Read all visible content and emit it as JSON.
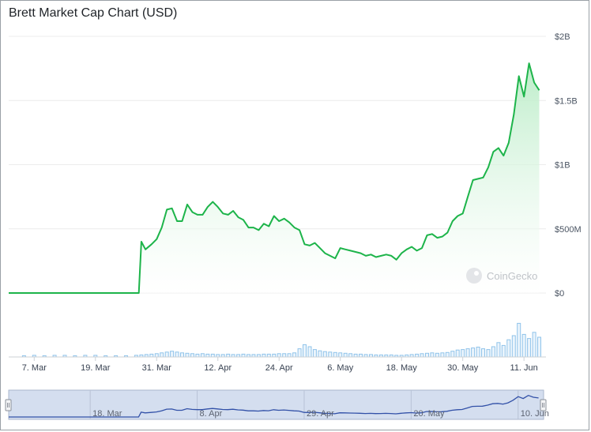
{
  "title": "Brett Market Cap Chart (USD)",
  "watermark": "CoinGecko",
  "colors": {
    "line": "#1db44a",
    "area_top": "#b9ecc6",
    "volume": "#8fc3ea",
    "navigator_fill": "#d4deef",
    "navigator_line": "#3251a8",
    "grid": "#ececec"
  },
  "chart_data": {
    "type": "area",
    "title": "Brett Market Cap Chart (USD)",
    "xlabel": "",
    "ylabel": "",
    "ylim": [
      0,
      2000000000
    ],
    "y_ticks": [
      "$0",
      "$500M",
      "$1B",
      "$1.5B",
      "$2B"
    ],
    "y_tick_values": [
      0,
      500000000,
      1000000000,
      1500000000,
      2000000000
    ],
    "x_ticks": [
      "7. Mar",
      "19. Mar",
      "31. Mar",
      "12. Apr",
      "24. Apr",
      "6. May",
      "18. May",
      "30. May",
      "11. Jun"
    ],
    "x_tick_days": [
      6,
      18,
      30,
      42,
      54,
      66,
      78,
      90,
      102
    ],
    "x_range_days": [
      1,
      106
    ],
    "x_note_days": "day 1 = 1 Mar",
    "grid": true,
    "legend": "none",
    "series": [
      {
        "type": "area",
        "values": [
          [
            1,
            0
          ],
          [
            16,
            0
          ],
          [
            26.5,
            0
          ],
          [
            27,
            400000000
          ],
          [
            27.8,
            340000000
          ],
          [
            29,
            380000000
          ],
          [
            30,
            420000000
          ],
          [
            31,
            510000000
          ],
          [
            32,
            650000000
          ],
          [
            33,
            660000000
          ],
          [
            34,
            560000000
          ],
          [
            35,
            560000000
          ],
          [
            36,
            690000000
          ],
          [
            37,
            630000000
          ],
          [
            38,
            610000000
          ],
          [
            39,
            610000000
          ],
          [
            40,
            670000000
          ],
          [
            41,
            710000000
          ],
          [
            42,
            670000000
          ],
          [
            43,
            620000000
          ],
          [
            44,
            610000000
          ],
          [
            45,
            640000000
          ],
          [
            46,
            590000000
          ],
          [
            47,
            570000000
          ],
          [
            48,
            510000000
          ],
          [
            49,
            510000000
          ],
          [
            50,
            490000000
          ],
          [
            51,
            540000000
          ],
          [
            52,
            520000000
          ],
          [
            53,
            600000000
          ],
          [
            54,
            560000000
          ],
          [
            55,
            580000000
          ],
          [
            56,
            550000000
          ],
          [
            57,
            510000000
          ],
          [
            58,
            490000000
          ],
          [
            59,
            380000000
          ],
          [
            60,
            370000000
          ],
          [
            61,
            390000000
          ],
          [
            62,
            350000000
          ],
          [
            63,
            310000000
          ],
          [
            64,
            290000000
          ],
          [
            65,
            270000000
          ],
          [
            66,
            350000000
          ],
          [
            67,
            340000000
          ],
          [
            68,
            330000000
          ],
          [
            69,
            320000000
          ],
          [
            70,
            310000000
          ],
          [
            71,
            290000000
          ],
          [
            72,
            300000000
          ],
          [
            73,
            280000000
          ],
          [
            74,
            290000000
          ],
          [
            75,
            300000000
          ],
          [
            76,
            290000000
          ],
          [
            77,
            260000000
          ],
          [
            78,
            310000000
          ],
          [
            79,
            340000000
          ],
          [
            80,
            360000000
          ],
          [
            81,
            330000000
          ],
          [
            82,
            350000000
          ],
          [
            83,
            450000000
          ],
          [
            84,
            460000000
          ],
          [
            85,
            430000000
          ],
          [
            86,
            440000000
          ],
          [
            87,
            470000000
          ],
          [
            88,
            560000000
          ],
          [
            89,
            600000000
          ],
          [
            90,
            620000000
          ],
          [
            91,
            750000000
          ],
          [
            92,
            880000000
          ],
          [
            93,
            890000000
          ],
          [
            94,
            900000000
          ],
          [
            95,
            980000000
          ],
          [
            96,
            1100000000
          ],
          [
            97,
            1130000000
          ],
          [
            98,
            1070000000
          ],
          [
            99,
            1170000000
          ],
          [
            100,
            1390000000
          ],
          [
            101,
            1690000000
          ],
          [
            102,
            1530000000
          ],
          [
            103,
            1790000000
          ],
          [
            104,
            1640000000
          ],
          [
            105,
            1580000000
          ]
        ]
      },
      {
        "name": "",
        "type": "bar",
        "description_role": "volume",
        "x_days": [
          4,
          6,
          8,
          10,
          12,
          14,
          16,
          18,
          20,
          22,
          24,
          26,
          27,
          28,
          29,
          30,
          31,
          32,
          33,
          34,
          35,
          36,
          37,
          38,
          39,
          40,
          41,
          42,
          43,
          44,
          45,
          46,
          47,
          48,
          49,
          50,
          51,
          52,
          53,
          54,
          55,
          56,
          57,
          58,
          59,
          60,
          61,
          62,
          63,
          64,
          65,
          66,
          67,
          68,
          69,
          70,
          71,
          72,
          73,
          74,
          75,
          76,
          77,
          78,
          79,
          80,
          81,
          82,
          83,
          84,
          85,
          86,
          87,
          88,
          89,
          90,
          91,
          92,
          93,
          94,
          95,
          96,
          97,
          98,
          99,
          100,
          101,
          102,
          103,
          104,
          105
        ],
        "relative_values": [
          0.03,
          0.04,
          0.03,
          0.04,
          0.04,
          0.03,
          0.04,
          0.04,
          0.03,
          0.03,
          0.03,
          0.04,
          0.05,
          0.06,
          0.07,
          0.08,
          0.1,
          0.12,
          0.14,
          0.12,
          0.1,
          0.09,
          0.08,
          0.07,
          0.08,
          0.07,
          0.07,
          0.06,
          0.06,
          0.07,
          0.06,
          0.06,
          0.07,
          0.06,
          0.06,
          0.06,
          0.07,
          0.07,
          0.07,
          0.08,
          0.08,
          0.08,
          0.1,
          0.2,
          0.3,
          0.25,
          0.18,
          0.15,
          0.13,
          0.12,
          0.11,
          0.1,
          0.09,
          0.08,
          0.07,
          0.07,
          0.06,
          0.06,
          0.05,
          0.05,
          0.05,
          0.05,
          0.04,
          0.04,
          0.05,
          0.06,
          0.07,
          0.08,
          0.09,
          0.1,
          0.09,
          0.1,
          0.11,
          0.14,
          0.17,
          0.18,
          0.2,
          0.22,
          0.24,
          0.2,
          0.18,
          0.25,
          0.35,
          0.28,
          0.42,
          0.52,
          0.82,
          0.55,
          0.45,
          0.6,
          0.48
        ]
      }
    ],
    "navigator": {
      "x_ticks": [
        "18. Mar",
        "8. Apr",
        "29. Apr",
        "20. May",
        "10. Jun"
      ],
      "x_tick_days": [
        17,
        38,
        59,
        80,
        101
      ]
    }
  }
}
